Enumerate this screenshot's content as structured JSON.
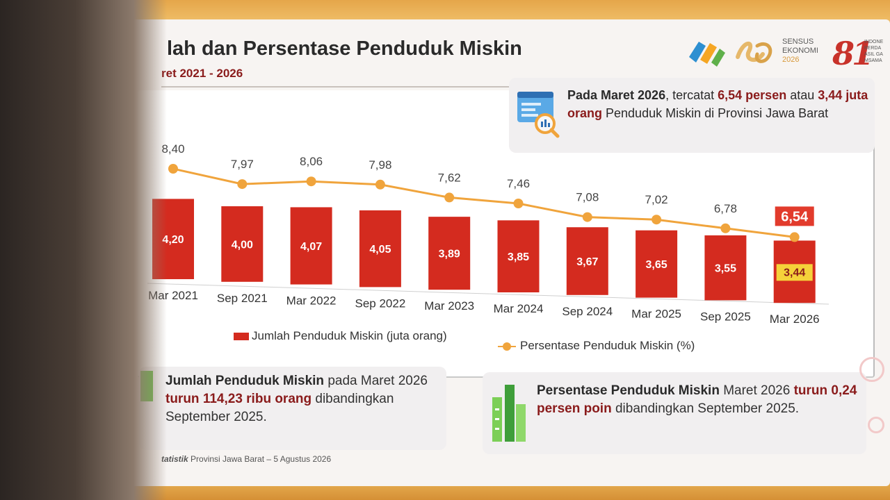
{
  "header": {
    "title": "lah dan Persentase Penduduk Miskin",
    "subtitle": "ret 2021 - 2026"
  },
  "logos": {
    "sensus_line1": "SENSUS",
    "sensus_line2": "EKONOMI",
    "sensus_year": "2026",
    "anniv_mark": "81",
    "anniv_text": [
      "INDONE",
      "BERDA",
      "ASIL GA",
      "M‍SAMA"
    ]
  },
  "callout": {
    "part1": "Pada Maret 2026",
    "part2": ", tercatat ",
    "part3": "6,54 persen",
    "part4": " atau ",
    "part5": "3,44 juta orang",
    "part6": " Penduduk Miskin di Provinsi Jawa Barat"
  },
  "colors": {
    "bar": "#d42b1f",
    "line": "#f0a43c",
    "highlight_label_bg": "#e23b2c",
    "highlight_value_bg": "#f5d23a",
    "accent_text": "#8a1b1b"
  },
  "chart_data": {
    "type": "bar",
    "categories": [
      "Mar 2021",
      "Sep 2021",
      "Mar 2022",
      "Sep 2022",
      "Mar 2023",
      "Mar 2024",
      "Sep 2024",
      "Mar 2025",
      "Sep 2025",
      "Mar 2026"
    ],
    "series": [
      {
        "name": "Jumlah Penduduk Miskin (juta orang)",
        "type": "bar",
        "values": [
          4.2,
          4.0,
          4.07,
          4.05,
          3.89,
          3.85,
          3.67,
          3.65,
          3.55,
          3.44
        ],
        "labels": [
          "4,20",
          "4,00",
          "4,07",
          "4,05",
          "3,89",
          "3,85",
          "3,67",
          "3,65",
          "3,55",
          "3,44"
        ]
      },
      {
        "name": "Persentase Penduduk Miskin (%)",
        "type": "line",
        "values": [
          8.4,
          7.97,
          8.06,
          7.98,
          7.62,
          7.46,
          7.08,
          7.02,
          6.78,
          6.54
        ],
        "labels": [
          "8,40",
          "7,97",
          "8,06",
          "7,98",
          "7,62",
          "7,46",
          "7,08",
          "7,02",
          "6,78",
          "6,54"
        ]
      }
    ],
    "highlight_index": 9,
    "legend_position": "bottom"
  },
  "summary_left": {
    "t1": "Jumlah Penduduk Miskin",
    "t2": " pada Maret 2026 ",
    "t3": "turun 114,23 ribu orang",
    "t4": " dibandingkan September 2025."
  },
  "summary_right": {
    "t1": "Persentase Penduduk Miskin",
    "t2": " Maret 2026 ",
    "t3": "turun 0,24 persen poin",
    "t4": " dibandingkan September 2025."
  },
  "footer": {
    "org": "tatistik",
    "rest": " Provinsi Jawa Barat – 5 Agustus 2026"
  }
}
